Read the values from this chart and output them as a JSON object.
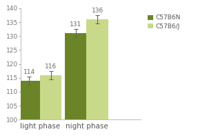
{
  "categories": [
    "light phase",
    "night phase"
  ],
  "series": [
    {
      "label": "C57B6N",
      "values": [
        114,
        131
      ],
      "errors": [
        1.5,
        1.5
      ],
      "color": "#6b8428"
    },
    {
      "label": "C57B6/J",
      "values": [
        116,
        136
      ],
      "errors": [
        1.5,
        1.5
      ],
      "color": "#c8da8a"
    }
  ],
  "ylim": [
    100,
    140
  ],
  "yticks": [
    100,
    105,
    110,
    115,
    120,
    125,
    130,
    135,
    140
  ],
  "bar_width": 0.28,
  "background_color": "#ffffff",
  "value_label_fontsize": 6.5,
  "axis_fontsize": 7.5,
  "tick_fontsize": 6.5,
  "legend_fontsize": 6.5,
  "x_positions": [
    0.25,
    0.85
  ],
  "xlim": [
    0.0,
    1.55
  ]
}
